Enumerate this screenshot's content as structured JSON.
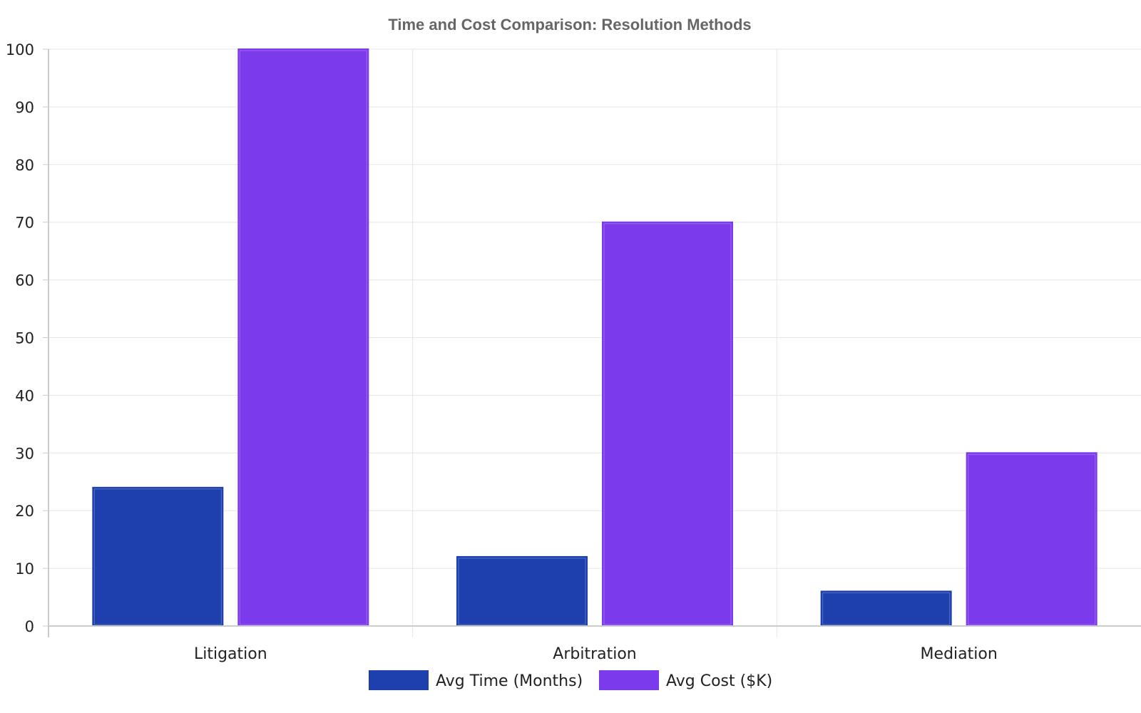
{
  "chart_data": {
    "type": "bar",
    "title": "Time and Cost Comparison: Resolution Methods",
    "xlabel": "",
    "ylabel": "",
    "categories": [
      "Litigation",
      "Arbitration",
      "Mediation"
    ],
    "series": [
      {
        "name": "Avg Time (Months)",
        "values": [
          24,
          12,
          6
        ],
        "color": "#1e40af"
      },
      {
        "name": "Avg Cost ($K)",
        "values": [
          100,
          70,
          30
        ],
        "color": "#7c3aed"
      }
    ],
    "ylim": [
      0,
      100
    ],
    "yticks": [
      0,
      10,
      20,
      30,
      40,
      50,
      60,
      70,
      80,
      90,
      100
    ],
    "grid": true,
    "legend_position": "bottom-center"
  }
}
